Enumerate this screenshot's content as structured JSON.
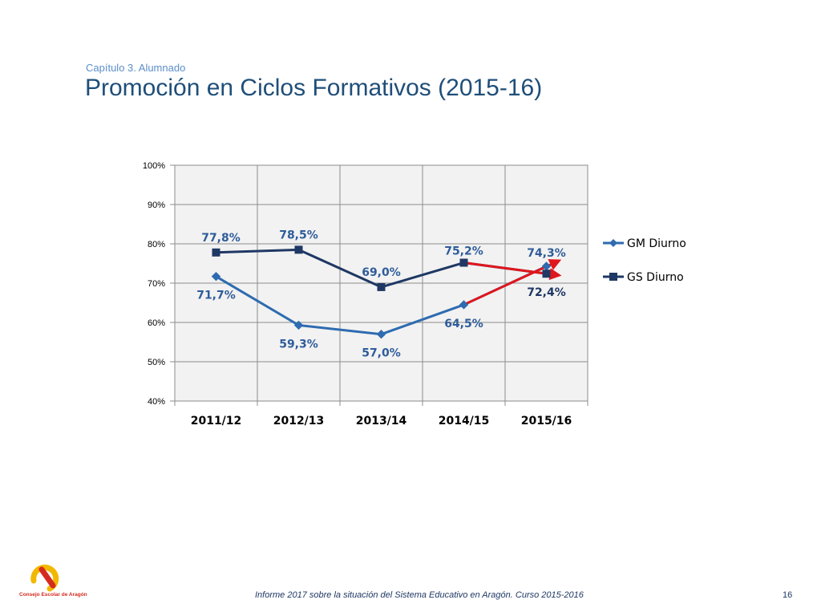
{
  "header": {
    "chapter": "Capítulo 3. Alumnado",
    "title": "Promoción en Ciclos Formativos (2015-16)"
  },
  "footer": {
    "text": "Informe 2017 sobre la situación del Sistema Educativo en Aragón. Curso 2015-2016",
    "page_number": "16",
    "logo_text": "Consejo Escolar de Aragón"
  },
  "chart_data": {
    "type": "line",
    "title": "",
    "xlabel": "",
    "ylabel": "",
    "categories": [
      "2011/12",
      "2012/13",
      "2013/14",
      "2014/15",
      "2015/16"
    ],
    "ylim": [
      40,
      100
    ],
    "y_ticks": [
      "40%",
      "50%",
      "60%",
      "70%",
      "80%",
      "90%",
      "100%"
    ],
    "grid": true,
    "legend_position": "right",
    "series": [
      {
        "name": "GM Diurno",
        "values": [
          71.7,
          59.3,
          57.0,
          64.5,
          74.3
        ],
        "labels": [
          "71,7%",
          "59,3%",
          "57,0%",
          "64,5%",
          "74,3%"
        ],
        "color": "#2e6bb0",
        "marker": "diamond"
      },
      {
        "name": "GS Diurno",
        "values": [
          77.8,
          78.5,
          69.0,
          75.2,
          72.4
        ],
        "labels": [
          "77,8%",
          "78,5%",
          "69,0%",
          "75,2%",
          "72,4%"
        ],
        "color": "#1f3864",
        "marker": "square"
      }
    ],
    "annotations": {
      "trend_arrow_color": "#e0161d",
      "trend_arrows": [
        {
          "series": "GM Diurno",
          "from": "2014/15",
          "to": "2015/16"
        },
        {
          "series": "GS Diurno",
          "from": "2014/15",
          "to": "2015/16"
        }
      ]
    },
    "plot_background": "#f2f2f2",
    "grid_color": "#8c8c8c",
    "label_color": "#2e5c9a"
  }
}
